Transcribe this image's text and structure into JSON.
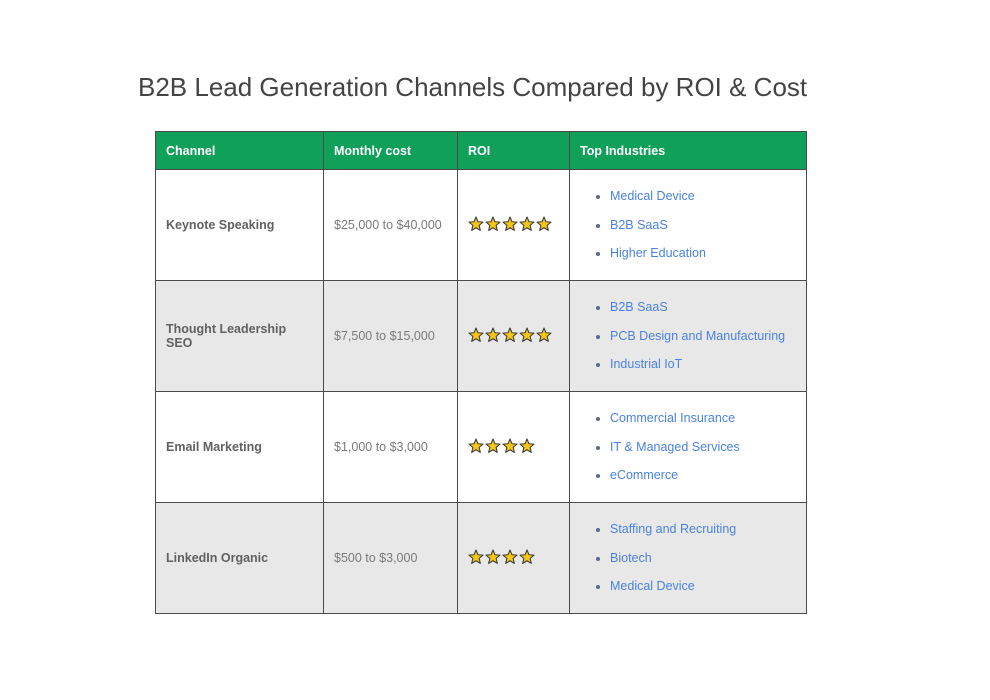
{
  "title": "B2B Lead Generation Channels Compared by ROI & Cost",
  "colors": {
    "header_bg": "#10a05a",
    "header_text": "#ffffff",
    "alt_row_bg": "#e8e8e8",
    "link_text": "#4a82e0",
    "star_fill": "#f5c518"
  },
  "table": {
    "headers": {
      "channel": "Channel",
      "cost": "Monthly cost",
      "roi": "ROI",
      "industries": "Top Industries"
    },
    "rows": [
      {
        "channel": "Keynote Speaking",
        "cost": "$25,000 to $40,000",
        "roi_stars": 5,
        "industries": [
          "Medical Device",
          "B2B SaaS",
          "Higher Education"
        ]
      },
      {
        "channel": "Thought Leadership SEO",
        "cost": "$7,500 to $15,000",
        "roi_stars": 5,
        "industries": [
          "B2B SaaS",
          "PCB Design and Manufacturing",
          "Industrial IoT"
        ]
      },
      {
        "channel": "Email Marketing",
        "cost": "$1,000 to $3,000",
        "roi_stars": 4,
        "industries": [
          "Commercial Insurance",
          "IT & Managed Services",
          "eCommerce"
        ]
      },
      {
        "channel": "LinkedIn Organic",
        "cost": "$500 to $3,000",
        "roi_stars": 4,
        "industries": [
          "Staffing and Recruiting",
          "Biotech",
          "Medical Device"
        ]
      }
    ]
  }
}
